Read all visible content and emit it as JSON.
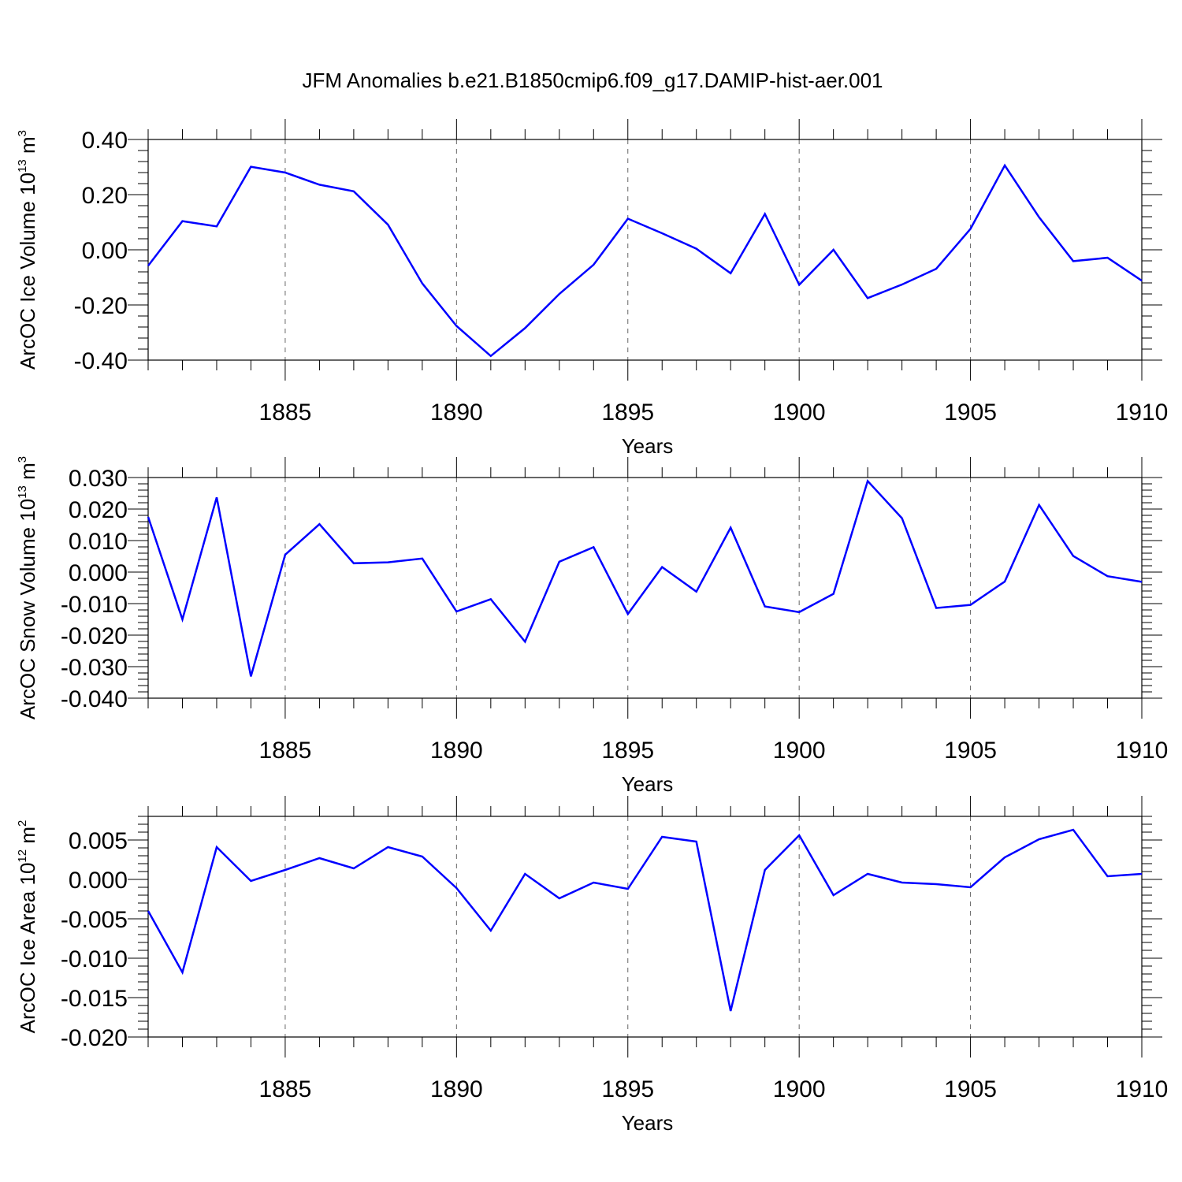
{
  "chart_data": [
    {
      "type": "line",
      "title": "JFM Anomalies b.e21.B1850cmip6.f09_g17.DAMIP-hist-aer.001",
      "ylabel": {
        "prefix": "ArcOC Ice Volume 10",
        "exponent": "13",
        "unit": " m",
        "unit_exp": "3"
      },
      "xlabel": "Years",
      "xlim": [
        1881,
        1910
      ],
      "ylim": [
        -0.4,
        0.4
      ],
      "yticks": [
        "0.40",
        "0.20",
        "0.00",
        "-0.20",
        "-0.40"
      ],
      "ytick_values": [
        0.4,
        0.2,
        0.0,
        -0.2,
        -0.4
      ],
      "xticks": [
        "1885",
        "1890",
        "1895",
        "1900",
        "1905",
        "1910"
      ],
      "grid_years": [
        1885,
        1890,
        1895,
        1900,
        1905
      ],
      "x": [
        1881,
        1882,
        1883,
        1884,
        1885,
        1886,
        1887,
        1888,
        1889,
        1890,
        1891,
        1892,
        1893,
        1894,
        1895,
        1896,
        1897,
        1898,
        1899,
        1900,
        1901,
        1902,
        1903,
        1904,
        1905,
        1906,
        1907,
        1908,
        1909,
        1910
      ],
      "values": [
        -0.058,
        0.104,
        0.085,
        0.301,
        0.28,
        0.236,
        0.212,
        0.091,
        -0.122,
        -0.276,
        -0.385,
        -0.284,
        -0.16,
        -0.054,
        0.113,
        0.06,
        0.004,
        -0.085,
        0.13,
        -0.127,
        0.0,
        -0.175,
        -0.126,
        -0.069,
        0.076,
        0.306,
        0.118,
        -0.041,
        -0.029,
        -0.112
      ],
      "color": "#0000ff"
    },
    {
      "type": "line",
      "ylabel": {
        "prefix": "ArcOC Snow Volume 10",
        "exponent": "13",
        "unit": " m",
        "unit_exp": "3"
      },
      "xlabel": "Years",
      "xlim": [
        1881,
        1910
      ],
      "ylim": [
        -0.04,
        0.03
      ],
      "yticks": [
        "0.030",
        "0.020",
        "0.010",
        "0.000",
        "-0.010",
        "-0.020",
        "-0.030",
        "-0.040"
      ],
      "ytick_values": [
        0.03,
        0.02,
        0.01,
        0.0,
        -0.01,
        -0.02,
        -0.03,
        -0.04
      ],
      "xticks": [
        "1885",
        "1890",
        "1895",
        "1900",
        "1905",
        "1910"
      ],
      "grid_years": [
        1885,
        1890,
        1895,
        1900,
        1905
      ],
      "x": [
        1881,
        1882,
        1883,
        1884,
        1885,
        1886,
        1887,
        1888,
        1889,
        1890,
        1891,
        1892,
        1893,
        1894,
        1895,
        1896,
        1897,
        1898,
        1899,
        1900,
        1901,
        1902,
        1903,
        1904,
        1905,
        1906,
        1907,
        1908,
        1909,
        1910
      ],
      "values": [
        0.0175,
        -0.015,
        0.0237,
        -0.0331,
        0.0055,
        0.0152,
        0.0028,
        0.0031,
        0.0043,
        -0.0125,
        -0.0086,
        -0.0221,
        0.0033,
        0.0079,
        -0.0133,
        0.0016,
        -0.0062,
        0.0141,
        -0.0109,
        -0.0127,
        -0.0069,
        0.0289,
        0.0171,
        -0.0114,
        -0.0104,
        -0.003,
        0.0213,
        0.0051,
        -0.0013,
        -0.0031
      ],
      "color": "#0000ff"
    },
    {
      "type": "line",
      "ylabel": {
        "prefix": "ArcOC Ice Area 10",
        "exponent": "12",
        "unit": " m",
        "unit_exp": "2"
      },
      "xlabel": "Years",
      "xlim": [
        1881,
        1910
      ],
      "ylim": [
        -0.02,
        0.008
      ],
      "yticks": [
        "0.005",
        "0.000",
        "-0.005",
        "-0.010",
        "-0.015",
        "-0.020"
      ],
      "ytick_values": [
        0.005,
        0.0,
        -0.005,
        -0.01,
        -0.015,
        -0.02
      ],
      "xticks": [
        "1885",
        "1890",
        "1895",
        "1900",
        "1905",
        "1910"
      ],
      "grid_years": [
        1885,
        1890,
        1895,
        1900,
        1905
      ],
      "x": [
        1881,
        1882,
        1883,
        1884,
        1885,
        1886,
        1887,
        1888,
        1889,
        1890,
        1891,
        1892,
        1893,
        1894,
        1895,
        1896,
        1897,
        1898,
        1899,
        1900,
        1901,
        1902,
        1903,
        1904,
        1905,
        1906,
        1907,
        1908,
        1909,
        1910
      ],
      "values": [
        -0.004,
        -0.0118,
        0.0041,
        -0.0002,
        0.0012,
        0.0027,
        0.0014,
        0.0041,
        0.0029,
        -0.0011,
        -0.0065,
        0.0007,
        -0.0024,
        -0.0004,
        -0.0012,
        0.0054,
        0.0048,
        -0.0167,
        0.0012,
        0.0056,
        -0.002,
        0.0007,
        -0.0004,
        -0.0006,
        -0.001,
        0.0028,
        0.0051,
        0.0063,
        0.0004,
        0.0007
      ],
      "color": "#0000ff"
    }
  ]
}
